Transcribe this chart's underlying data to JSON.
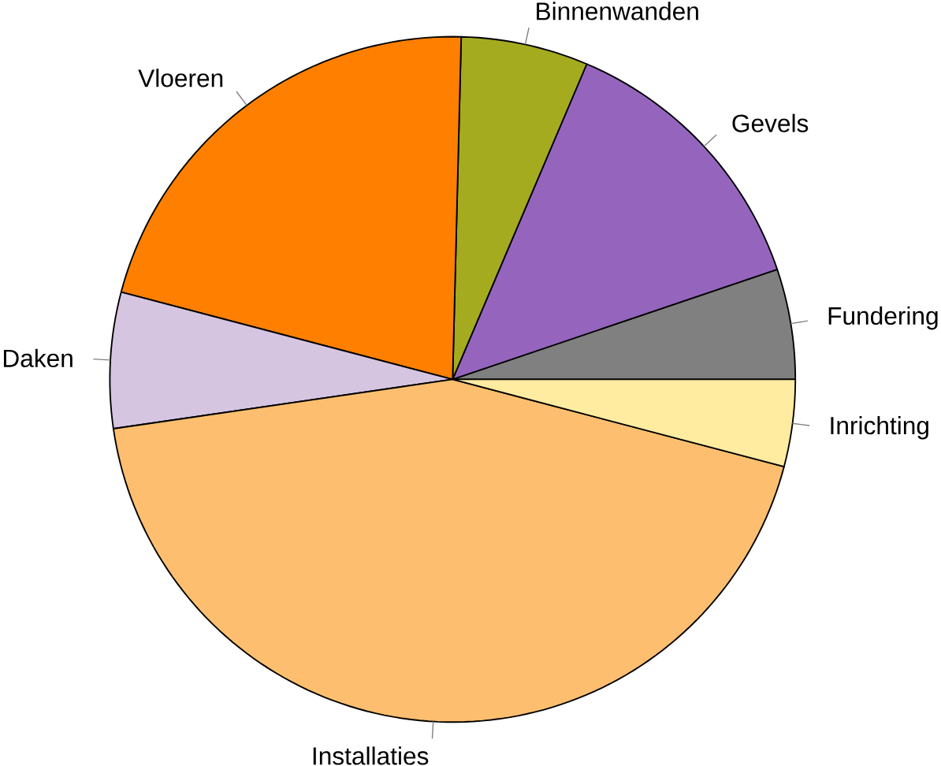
{
  "chart_data": {
    "type": "pie",
    "categories": [
      "Fundering",
      "Gevels",
      "Binnenwanden",
      "Vloeren",
      "Daken",
      "Installaties",
      "Inrichting"
    ],
    "values": [
      5.2,
      13.4,
      6.0,
      21.3,
      6.4,
      43.6,
      4.1
    ],
    "colors": [
      "#808080",
      "#9565be",
      "#a5ab1e",
      "#ff7f00",
      "#d6c5e1",
      "#fdbf6f",
      "#ffeca0"
    ]
  }
}
